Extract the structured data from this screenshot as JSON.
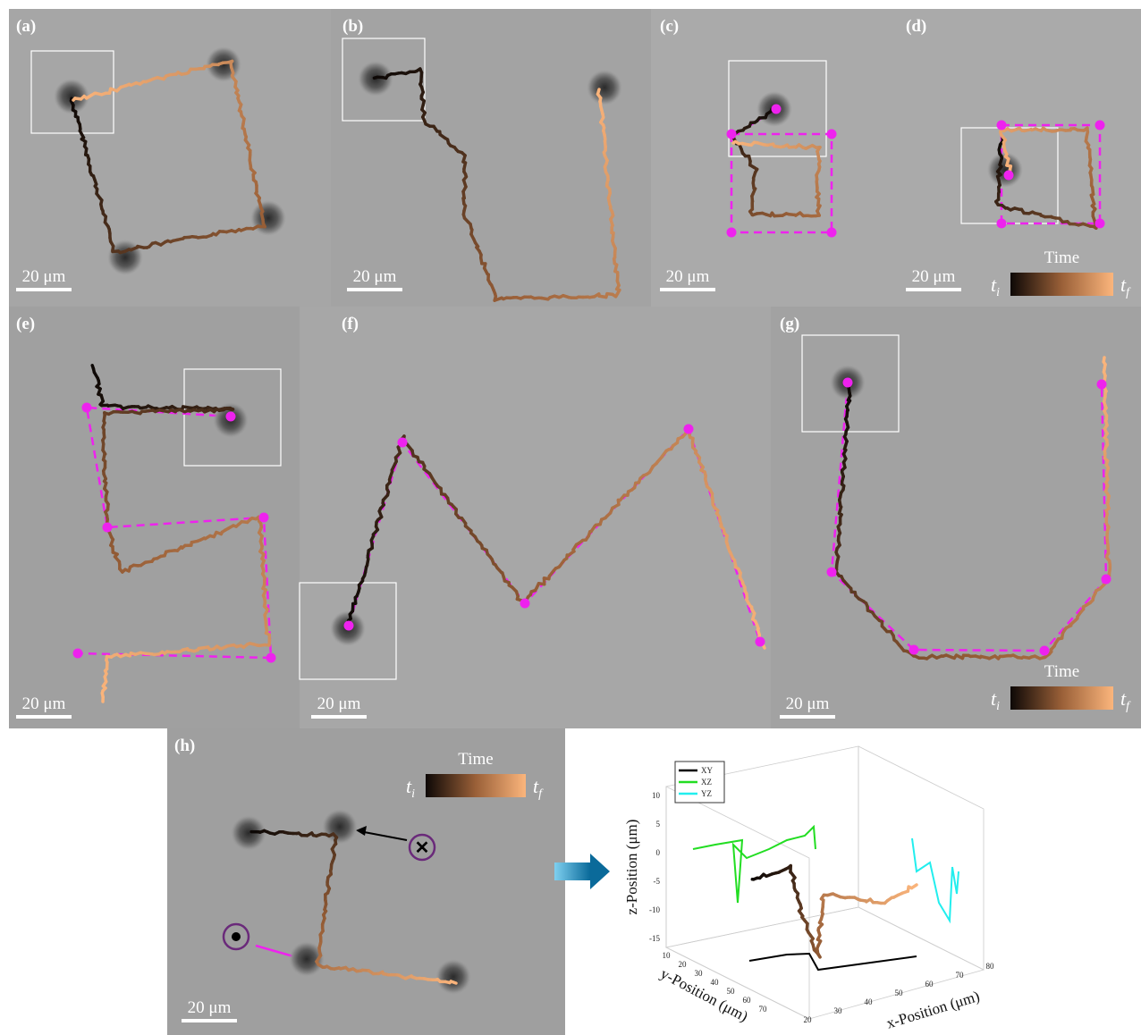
{
  "panels": [
    {
      "label": "(a)",
      "scale_bar": "20 μm"
    },
    {
      "label": "(b)",
      "scale_bar": "20 μm"
    },
    {
      "label": "(c)",
      "scale_bar": "20 μm"
    },
    {
      "label": "(d)",
      "scale_bar": "20 μm"
    },
    {
      "label": "(e)",
      "scale_bar": "20 μm"
    },
    {
      "label": "(f)",
      "scale_bar": "20 μm"
    },
    {
      "label": "(g)",
      "scale_bar": "20 μm"
    },
    {
      "label": "(h)",
      "scale_bar": "20 μm"
    }
  ],
  "colorbars": [
    {
      "title": "Time",
      "start": "t",
      "start_sub": "i",
      "end": "t",
      "end_sub": "f"
    },
    {
      "title": "Time",
      "start": "t",
      "start_sub": "i",
      "end": "t",
      "end_sub": "f"
    },
    {
      "title": "Time",
      "start": "t",
      "start_sub": "i",
      "end": "t",
      "end_sub": "f"
    }
  ],
  "plot3d": {
    "legend": [
      "XY",
      "XZ",
      "YZ"
    ],
    "z_label": "z-Position (μm)",
    "y_label": "y-Position (μm)",
    "x_label": "x-Position (μm)",
    "z_ticks": [
      10,
      5,
      0,
      -5,
      -10,
      -15
    ],
    "y_ticks": [
      10,
      20,
      30,
      40,
      50,
      60,
      70
    ],
    "x_ticks": [
      20,
      30,
      40,
      50,
      60,
      70,
      80
    ]
  }
}
